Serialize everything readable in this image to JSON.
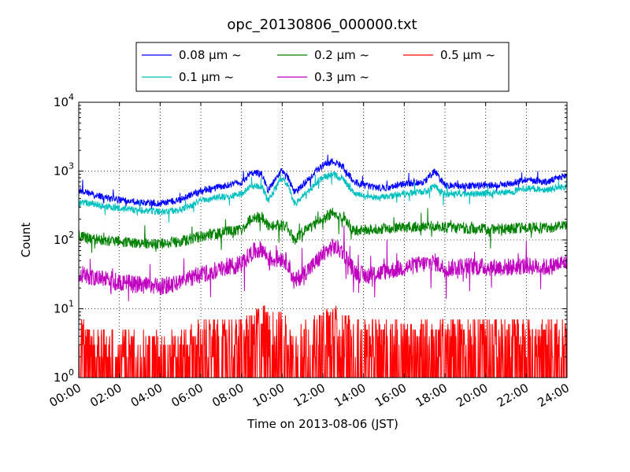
{
  "chart_data": {
    "type": "line",
    "title": "opc_20130806_000000.txt",
    "xlabel": "Time on 2013-08-06 (JST)",
    "ylabel": "Count",
    "yscale": "log",
    "ylim": [
      1,
      10000
    ],
    "xlim": [
      "00:00",
      "24:00"
    ],
    "x_unit": "hours",
    "x_ticks": [
      "00:00",
      "02:00",
      "04:00",
      "06:00",
      "08:00",
      "10:00",
      "12:00",
      "14:00",
      "16:00",
      "18:00",
      "20:00",
      "22:00",
      "24:00"
    ],
    "y_ticks": [
      {
        "base": "10",
        "exp": "0"
      },
      {
        "base": "10",
        "exp": "1"
      },
      {
        "base": "10",
        "exp": "2"
      },
      {
        "base": "10",
        "exp": "3"
      },
      {
        "base": "10",
        "exp": "4"
      }
    ],
    "grid": true,
    "legend_position": "above",
    "series": [
      {
        "name": "0.08 μm ~",
        "color": "#0000ff",
        "x": [
          0,
          1,
          2,
          3,
          4,
          5,
          6,
          7,
          8,
          8.5,
          9,
          9.3,
          9.6,
          10,
          10.3,
          10.6,
          11,
          11.5,
          12,
          12.5,
          13,
          13.5,
          14,
          15,
          16,
          17,
          17.5,
          18,
          19,
          20,
          21,
          22,
          23,
          24
        ],
        "values": [
          520,
          430,
          380,
          350,
          340,
          380,
          520,
          600,
          680,
          950,
          900,
          520,
          700,
          1050,
          800,
          480,
          620,
          900,
          1200,
          1400,
          1150,
          720,
          620,
          560,
          650,
          700,
          1000,
          620,
          610,
          620,
          640,
          760,
          690,
          880
        ]
      },
      {
        "name": "0.1 μm ~",
        "color": "#00bfbf",
        "x": [
          0,
          1,
          2,
          3,
          4,
          5,
          6,
          7,
          8,
          8.5,
          9,
          9.3,
          9.6,
          10,
          10.3,
          10.6,
          11,
          11.5,
          12,
          12.5,
          13,
          13.5,
          14,
          15,
          16,
          17,
          17.5,
          18,
          19,
          20,
          21,
          22,
          23,
          24
        ],
        "values": [
          360,
          320,
          290,
          270,
          260,
          270,
          370,
          420,
          470,
          620,
          600,
          370,
          520,
          800,
          600,
          330,
          420,
          600,
          800,
          900,
          780,
          480,
          430,
          420,
          470,
          500,
          600,
          460,
          470,
          470,
          480,
          560,
          540,
          600
        ]
      },
      {
        "name": "0.2 μm ~",
        "color": "#008000",
        "x": [
          0,
          1,
          2,
          3,
          4,
          5,
          6,
          7,
          8,
          8.5,
          9,
          9.3,
          9.6,
          10,
          10.3,
          10.6,
          11,
          11.5,
          12,
          12.5,
          13,
          13.5,
          14,
          15,
          16,
          17,
          17.5,
          18,
          19,
          20,
          21,
          22,
          23,
          24
        ],
        "values": [
          115,
          100,
          95,
          90,
          88,
          95,
          112,
          128,
          140,
          210,
          215,
          165,
          165,
          160,
          150,
          100,
          130,
          160,
          200,
          250,
          220,
          135,
          140,
          145,
          155,
          160,
          160,
          150,
          145,
          145,
          145,
          150,
          150,
          165
        ]
      },
      {
        "name": "0.3 μm ~",
        "color": "#bf00bf",
        "x": [
          0,
          1,
          2,
          3,
          4,
          5,
          6,
          7,
          8,
          8.5,
          9,
          9.3,
          9.6,
          10,
          10.3,
          10.6,
          11,
          11.5,
          12,
          12.5,
          13,
          13.5,
          14,
          15,
          16,
          17,
          17.5,
          18,
          19,
          20,
          21,
          22,
          23,
          24
        ],
        "values": [
          32,
          28,
          24,
          22,
          21,
          24,
          32,
          38,
          45,
          65,
          75,
          55,
          52,
          55,
          45,
          24,
          32,
          42,
          62,
          80,
          68,
          36,
          30,
          34,
          40,
          45,
          48,
          38,
          42,
          40,
          40,
          42,
          40,
          48
        ]
      },
      {
        "name": "0.5 μm ~",
        "color": "#ff0000",
        "x": [
          0,
          1,
          2,
          3,
          4,
          5,
          6,
          7,
          8,
          8.5,
          9,
          9.3,
          9.6,
          10,
          10.3,
          10.6,
          11,
          11.5,
          12,
          12.5,
          13,
          13.5,
          14,
          15,
          16,
          17,
          17.5,
          18,
          19,
          20,
          21,
          22,
          23,
          24
        ],
        "values": [
          3,
          2,
          2,
          2,
          2,
          2,
          3,
          3,
          3,
          4,
          5,
          4,
          4,
          4,
          3,
          2,
          3,
          3,
          4,
          5,
          4,
          3,
          3,
          3,
          3,
          3,
          3,
          3,
          3,
          3,
          3,
          3,
          3,
          3
        ]
      }
    ]
  }
}
